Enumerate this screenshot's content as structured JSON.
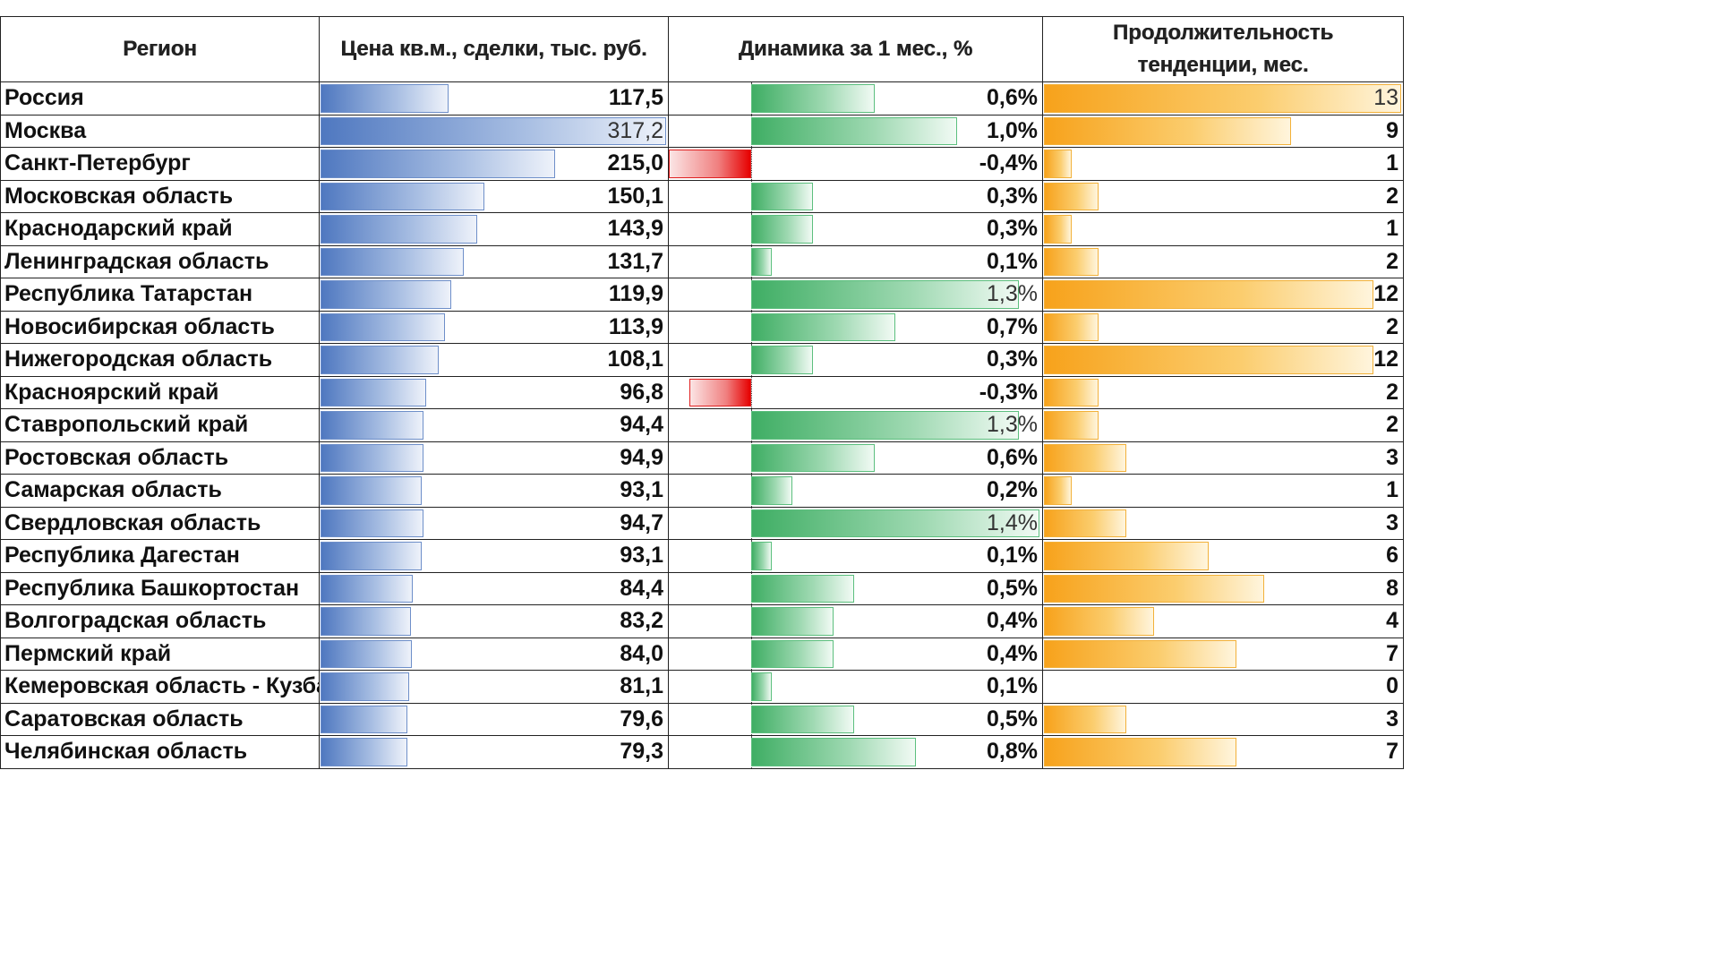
{
  "chart_data": {
    "type": "table",
    "columns": [
      "Регион",
      "Цена кв.м., сделки, тыс. руб.",
      "Динамика за 1 мес., %",
      "Продолжительность тенденции, мес."
    ],
    "header_line2": {
      "duration_line1": "Продолжительность",
      "duration_line2": "тенденции, мес."
    },
    "rows": [
      {
        "region": "Россия",
        "price": 117.5,
        "price_label": "117,5",
        "dyn": 0.6,
        "dyn_label": "0,6%",
        "dur": 13,
        "dur_label": "13"
      },
      {
        "region": "Москва",
        "price": 317.2,
        "price_label": "317,2",
        "dyn": 1.0,
        "dyn_label": "1,0%",
        "dur": 9,
        "dur_label": "9"
      },
      {
        "region": "Санкт-Петербург",
        "price": 215.0,
        "price_label": "215,0",
        "dyn": -0.4,
        "dyn_label": "-0,4%",
        "dur": 1,
        "dur_label": "1"
      },
      {
        "region": "Московская область",
        "price": 150.1,
        "price_label": "150,1",
        "dyn": 0.3,
        "dyn_label": "0,3%",
        "dur": 2,
        "dur_label": "2"
      },
      {
        "region": "Краснодарский край",
        "price": 143.9,
        "price_label": "143,9",
        "dyn": 0.3,
        "dyn_label": "0,3%",
        "dur": 1,
        "dur_label": "1"
      },
      {
        "region": "Ленинградская область",
        "price": 131.7,
        "price_label": "131,7",
        "dyn": 0.1,
        "dyn_label": "0,1%",
        "dur": 2,
        "dur_label": "2"
      },
      {
        "region": "Республика Татарстан",
        "price": 119.9,
        "price_label": "119,9",
        "dyn": 1.3,
        "dyn_label": "1,3%",
        "dur": 12,
        "dur_label": "12"
      },
      {
        "region": "Новосибирская область",
        "price": 113.9,
        "price_label": "113,9",
        "dyn": 0.7,
        "dyn_label": "0,7%",
        "dur": 2,
        "dur_label": "2"
      },
      {
        "region": "Нижегородская область",
        "price": 108.1,
        "price_label": "108,1",
        "dyn": 0.3,
        "dyn_label": "0,3%",
        "dur": 12,
        "dur_label": "12"
      },
      {
        "region": "Красноярский край",
        "price": 96.8,
        "price_label": "96,8",
        "dyn": -0.3,
        "dyn_label": "-0,3%",
        "dur": 2,
        "dur_label": "2"
      },
      {
        "region": "Ставропольский край",
        "price": 94.4,
        "price_label": "94,4",
        "dyn": 1.3,
        "dyn_label": "1,3%",
        "dur": 2,
        "dur_label": "2"
      },
      {
        "region": "Ростовская область",
        "price": 94.9,
        "price_label": "94,9",
        "dyn": 0.6,
        "dyn_label": "0,6%",
        "dur": 3,
        "dur_label": "3"
      },
      {
        "region": "Самарская область",
        "price": 93.1,
        "price_label": "93,1",
        "dyn": 0.2,
        "dyn_label": "0,2%",
        "dur": 1,
        "dur_label": "1"
      },
      {
        "region": "Свердловская область",
        "price": 94.7,
        "price_label": "94,7",
        "dyn": 1.4,
        "dyn_label": "1,4%",
        "dur": 3,
        "dur_label": "3"
      },
      {
        "region": "Республика Дагестан",
        "price": 93.1,
        "price_label": "93,1",
        "dyn": 0.1,
        "dyn_label": "0,1%",
        "dur": 6,
        "dur_label": "6"
      },
      {
        "region": "Республика Башкортостан",
        "price": 84.4,
        "price_label": "84,4",
        "dyn": 0.5,
        "dyn_label": "0,5%",
        "dur": 8,
        "dur_label": "8"
      },
      {
        "region": "Волгоградская область",
        "price": 83.2,
        "price_label": "83,2",
        "dyn": 0.4,
        "dyn_label": "0,4%",
        "dur": 4,
        "dur_label": "4"
      },
      {
        "region": "Пермский край",
        "price": 84.0,
        "price_label": "84,0",
        "dyn": 0.4,
        "dyn_label": "0,4%",
        "dur": 7,
        "dur_label": "7"
      },
      {
        "region": "Кемеровская область - Кузба",
        "price": 81.1,
        "price_label": "81,1",
        "dyn": 0.1,
        "dyn_label": "0,1%",
        "dur": 0,
        "dur_label": "0"
      },
      {
        "region": "Саратовская область",
        "price": 79.6,
        "price_label": "79,6",
        "dyn": 0.5,
        "dyn_label": "0,5%",
        "dur": 3,
        "dur_label": "3"
      },
      {
        "region": "Челябинская область",
        "price": 79.3,
        "price_label": "79,3",
        "dyn": 0.8,
        "dyn_label": "0,8%",
        "dur": 7,
        "dur_label": "7"
      }
    ],
    "price_max": 317.2,
    "dyn_max": 1.4,
    "dyn_min": -0.4,
    "dur_max": 13,
    "colors": {
      "price_bar": "#4f78c0",
      "positive_bar": "#3fae64",
      "negative_bar": "#e60000",
      "duration_bar": "#f7a21b",
      "grid": "#222222"
    }
  }
}
